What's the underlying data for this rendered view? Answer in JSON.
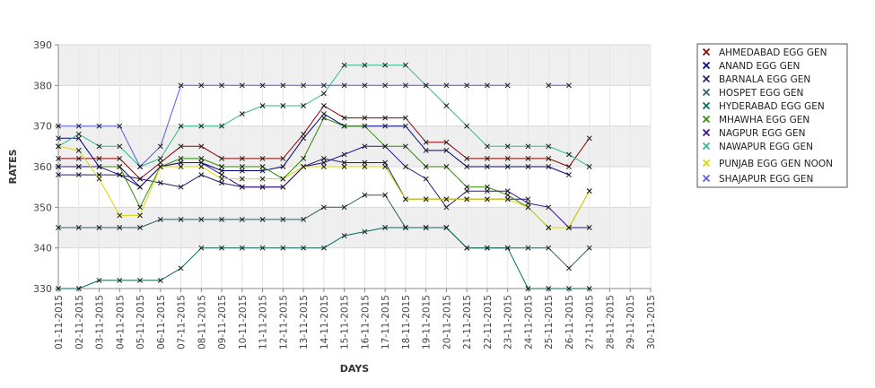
{
  "chart_data": {
    "type": "line",
    "title": "",
    "xlabel": "DAYS",
    "ylabel": "RATES",
    "ylim": [
      330,
      390
    ],
    "yticks": [
      330,
      340,
      350,
      360,
      370,
      380,
      390
    ],
    "grid": true,
    "legend_position": "right",
    "categories": [
      "01-11-2015",
      "02-11-2015",
      "03-11-2015",
      "04-11-2015",
      "05-11-2015",
      "06-11-2015",
      "07-11-2015",
      "08-11-2015",
      "09-11-2015",
      "10-11-2015",
      "11-11-2015",
      "12-11-2015",
      "13-11-2015",
      "14-11-2015",
      "15-11-2015",
      "16-11-2015",
      "17-11-2015",
      "18-11-2015",
      "19-11-2015",
      "20-11-2015",
      "21-11-2015",
      "22-11-2015",
      "23-11-2015",
      "24-11-2015",
      "25-11-2015",
      "26-11-2015",
      "27-11-2015",
      "28-11-2015",
      "29-11-2015",
      "30-11-2015"
    ],
    "series": [
      {
        "name": "AHMEDABAD EGG GEN",
        "color": "#8b0000",
        "values": [
          362,
          362,
          362,
          362,
          357,
          361,
          365,
          365,
          362,
          362,
          362,
          362,
          368,
          375,
          372,
          372,
          372,
          372,
          366,
          366,
          362,
          362,
          362,
          362,
          362,
          360,
          367,
          null,
          null,
          null
        ]
      },
      {
        "name": "ANAND EGG GEN",
        "color": "#00007f",
        "values": [
          367,
          367,
          360,
          360,
          355,
          360,
          361,
          361,
          359,
          359,
          359,
          360,
          367,
          373,
          370,
          370,
          370,
          370,
          364,
          364,
          360,
          360,
          360,
          360,
          360,
          358,
          null,
          null,
          null,
          null
        ]
      },
      {
        "name": "BARNALA EGG GEN",
        "color": "#1f1f6e",
        "values": [
          358,
          358,
          358,
          358,
          357,
          356,
          355,
          358,
          356,
          355,
          355,
          355,
          360,
          362,
          361,
          361,
          361,
          352,
          352,
          352,
          352,
          352,
          352,
          352,
          null,
          null,
          null,
          null,
          null,
          null
        ]
      },
      {
        "name": "HOSPET EGG GEN",
        "color": "#2e5e5e",
        "values": [
          345,
          345,
          345,
          345,
          345,
          347,
          347,
          347,
          347,
          347,
          347,
          347,
          347,
          350,
          350,
          353,
          353,
          345,
          345,
          345,
          340,
          340,
          340,
          340,
          340,
          335,
          340,
          null,
          null,
          null
        ]
      },
      {
        "name": "HYDERABAD EGG GEN",
        "color": "#006b5b",
        "values": [
          330,
          330,
          332,
          332,
          332,
          332,
          335,
          340,
          340,
          340,
          340,
          340,
          340,
          340,
          343,
          344,
          345,
          345,
          345,
          345,
          340,
          340,
          340,
          330,
          330,
          330,
          330,
          null,
          null,
          null
        ]
      },
      {
        "name": "MHAWHA EGG GEN",
        "color": "#2e8b00",
        "values": [
          360,
          360,
          360,
          360,
          350,
          360,
          362,
          362,
          360,
          360,
          360,
          357,
          362,
          372,
          370,
          370,
          365,
          365,
          360,
          360,
          355,
          355,
          353,
          350,
          345,
          345,
          354,
          null,
          null,
          null
        ]
      },
      {
        "name": "NAGPUR EGG GEN",
        "color": "#30108a",
        "values": [
          360,
          360,
          360,
          358,
          355,
          360,
          361,
          361,
          358,
          355,
          355,
          355,
          360,
          361,
          363,
          365,
          365,
          360,
          357,
          350,
          354,
          354,
          354,
          351,
          350,
          345,
          345,
          null,
          null,
          null
        ]
      },
      {
        "name": "NAWAPUR EGG GEN",
        "color": "#2eb88a",
        "values": [
          365,
          368,
          365,
          365,
          360,
          362,
          370,
          370,
          370,
          373,
          375,
          375,
          375,
          378,
          385,
          385,
          385,
          385,
          380,
          375,
          370,
          365,
          365,
          365,
          365,
          363,
          360,
          null,
          null,
          null
        ]
      },
      {
        "name": "PUNJAB EGG GEN NOON",
        "color": "#d8d800",
        "values": [
          365,
          364,
          357,
          348,
          348,
          360,
          360,
          360,
          357,
          357,
          357,
          357,
          360,
          360,
          360,
          360,
          360,
          352,
          352,
          352,
          352,
          352,
          352,
          350,
          345,
          345,
          354,
          null,
          null,
          null
        ]
      },
      {
        "name": "SHAJAPUR EGG GEN",
        "color": "#5a5ae6",
        "values": [
          370,
          370,
          370,
          370,
          360,
          365,
          380,
          380,
          380,
          380,
          380,
          380,
          380,
          380,
          380,
          380,
          380,
          380,
          380,
          380,
          380,
          380,
          380,
          null,
          380,
          380,
          null,
          null,
          null,
          null
        ]
      }
    ]
  }
}
